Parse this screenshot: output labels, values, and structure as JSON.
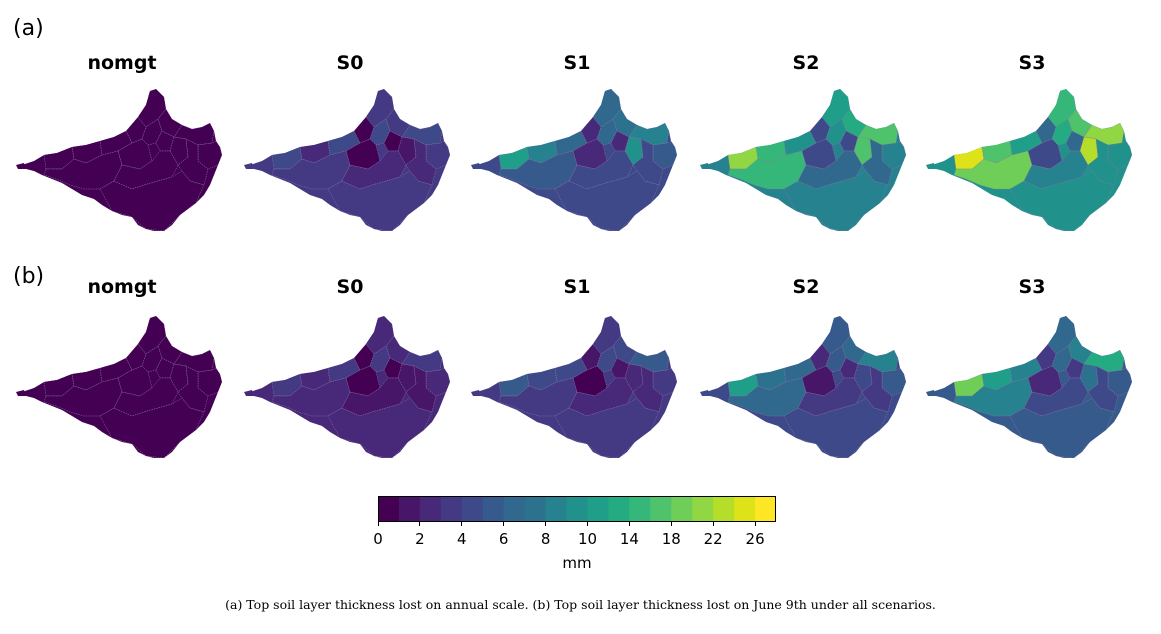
{
  "panels": [
    {
      "label": "(a)",
      "maps": [
        {
          "title": "nomgt",
          "values": [
            0.5,
            0.5,
            0.5,
            0.5,
            0.5,
            0.5,
            0.5,
            0.5,
            0.5,
            0.5,
            0.5,
            0.5,
            0.5,
            0.5,
            0.5,
            0.5
          ]
        },
        {
          "title": "S0",
          "values": [
            4,
            2,
            4,
            0.5,
            3,
            3,
            4,
            4,
            0.5,
            1,
            3,
            2,
            3,
            0.5,
            2,
            3
          ]
        },
        {
          "title": "S1",
          "values": [
            11,
            8,
            6,
            2,
            6,
            7,
            8,
            6,
            2,
            9,
            5,
            4,
            5,
            2,
            4,
            4
          ]
        },
        {
          "title": "S2",
          "values": [
            21,
            14,
            9,
            4,
            11,
            13,
            16,
            9,
            4,
            17,
            8,
            6,
            14,
            4,
            6,
            8
          ]
        },
        {
          "title": "S3",
          "values": [
            25,
            17,
            11,
            6,
            14,
            16,
            20,
            12,
            6,
            22,
            9,
            9,
            18,
            4,
            8,
            9
          ]
        }
      ]
    },
    {
      "label": "(b)",
      "maps": [
        {
          "title": "nomgt",
          "values": [
            0.5,
            0.5,
            0.5,
            0.5,
            0.5,
            0.5,
            0.5,
            0.5,
            0.5,
            0.5,
            0.5,
            0.5,
            0.5,
            0.5,
            0.5,
            0.5
          ]
        },
        {
          "title": "S0",
          "values": [
            3,
            2,
            3,
            0.5,
            2,
            2,
            3,
            3,
            0.5,
            1,
            2,
            1,
            2,
            0.5,
            1,
            2
          ]
        },
        {
          "title": "S1",
          "values": [
            5,
            4,
            4,
            1,
            3,
            4,
            5,
            4,
            1,
            2,
            3,
            2,
            3,
            0.5,
            2,
            3
          ]
        },
        {
          "title": "S2",
          "values": [
            10,
            7,
            6,
            2,
            5,
            6,
            8,
            5,
            2,
            4,
            5,
            3,
            6,
            1,
            3,
            4
          ]
        },
        {
          "title": "S3",
          "values": [
            18,
            10,
            8,
            3,
            6,
            8,
            12,
            6,
            3,
            7,
            5,
            4,
            8,
            2,
            4,
            5
          ]
        }
      ]
    }
  ],
  "colorbar": {
    "bounds": [
      0,
      1,
      2,
      3,
      4,
      5,
      6,
      7,
      8,
      9,
      10,
      12,
      14,
      16,
      18,
      20,
      22,
      24,
      26
    ],
    "colors": [
      "#440154",
      "#481668",
      "#482878",
      "#443983",
      "#3e4989",
      "#375a8c",
      "#31688e",
      "#2c728e",
      "#26828e",
      "#21918c",
      "#1f9e89",
      "#25ab82",
      "#35b779",
      "#4ec36b",
      "#6ece58",
      "#90d743",
      "#b5de2b",
      "#dde318",
      "#fde725"
    ],
    "tick_labels": [
      "0",
      "2",
      "4",
      "6",
      "8",
      "10",
      "14",
      "18",
      "22",
      "26"
    ],
    "unit": "mm"
  },
  "caption": "(a) Top soil layer thickness lost on annual scale. (b) Top soil layer thickness lost on June 9th under all scenarios."
}
